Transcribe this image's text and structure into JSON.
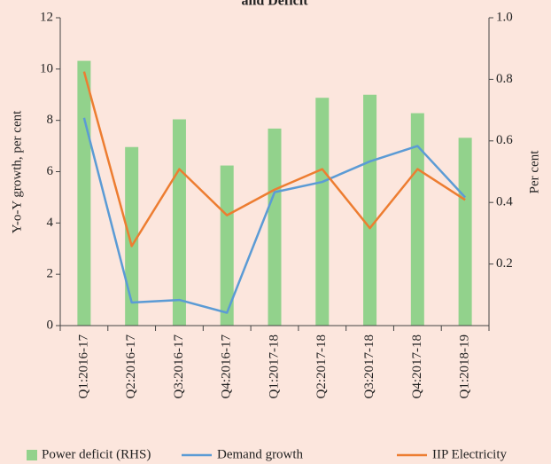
{
  "chart_data": {
    "type": "bar",
    "title": "and Deficit",
    "categories": [
      "Q1:2016-17",
      "Q2:2016-17",
      "Q3:2016-17",
      "Q4:2016-17",
      "Q1:2017-18",
      "Q2:2017-18",
      "Q3:2017-18",
      "Q4:2017-18",
      "Q1:2018-19"
    ],
    "y_label": "Y-o-Y growth, per cent",
    "y2_label": "Per cent",
    "ylim": [
      0,
      12
    ],
    "yticks": [
      0,
      2,
      4,
      6,
      8,
      10,
      12
    ],
    "y2lim": [
      0,
      1
    ],
    "y2ticks": [
      0.2,
      0.4,
      0.6,
      0.8,
      {
        "value": 1,
        "label": "1.0"
      }
    ],
    "series": [
      {
        "name": "Power deficit (RHS)",
        "type": "bar",
        "axis": "y2",
        "color": "#92d28c",
        "values": [
          0.86,
          0.58,
          0.67,
          0.52,
          0.64,
          0.74,
          0.75,
          0.69,
          0.61
        ]
      },
      {
        "name": "Demand growth",
        "type": "line",
        "color": "#5b9bd5",
        "values": [
          8.1,
          0.9,
          1.0,
          0.5,
          5.2,
          5.6,
          6.4,
          7.0,
          5.0
        ]
      },
      {
        "name": "IIP Electricity",
        "type": "line",
        "color": "#ed7d31",
        "values": [
          9.9,
          3.1,
          6.1,
          4.3,
          5.3,
          6.1,
          3.8,
          6.1,
          4.9
        ]
      }
    ]
  }
}
